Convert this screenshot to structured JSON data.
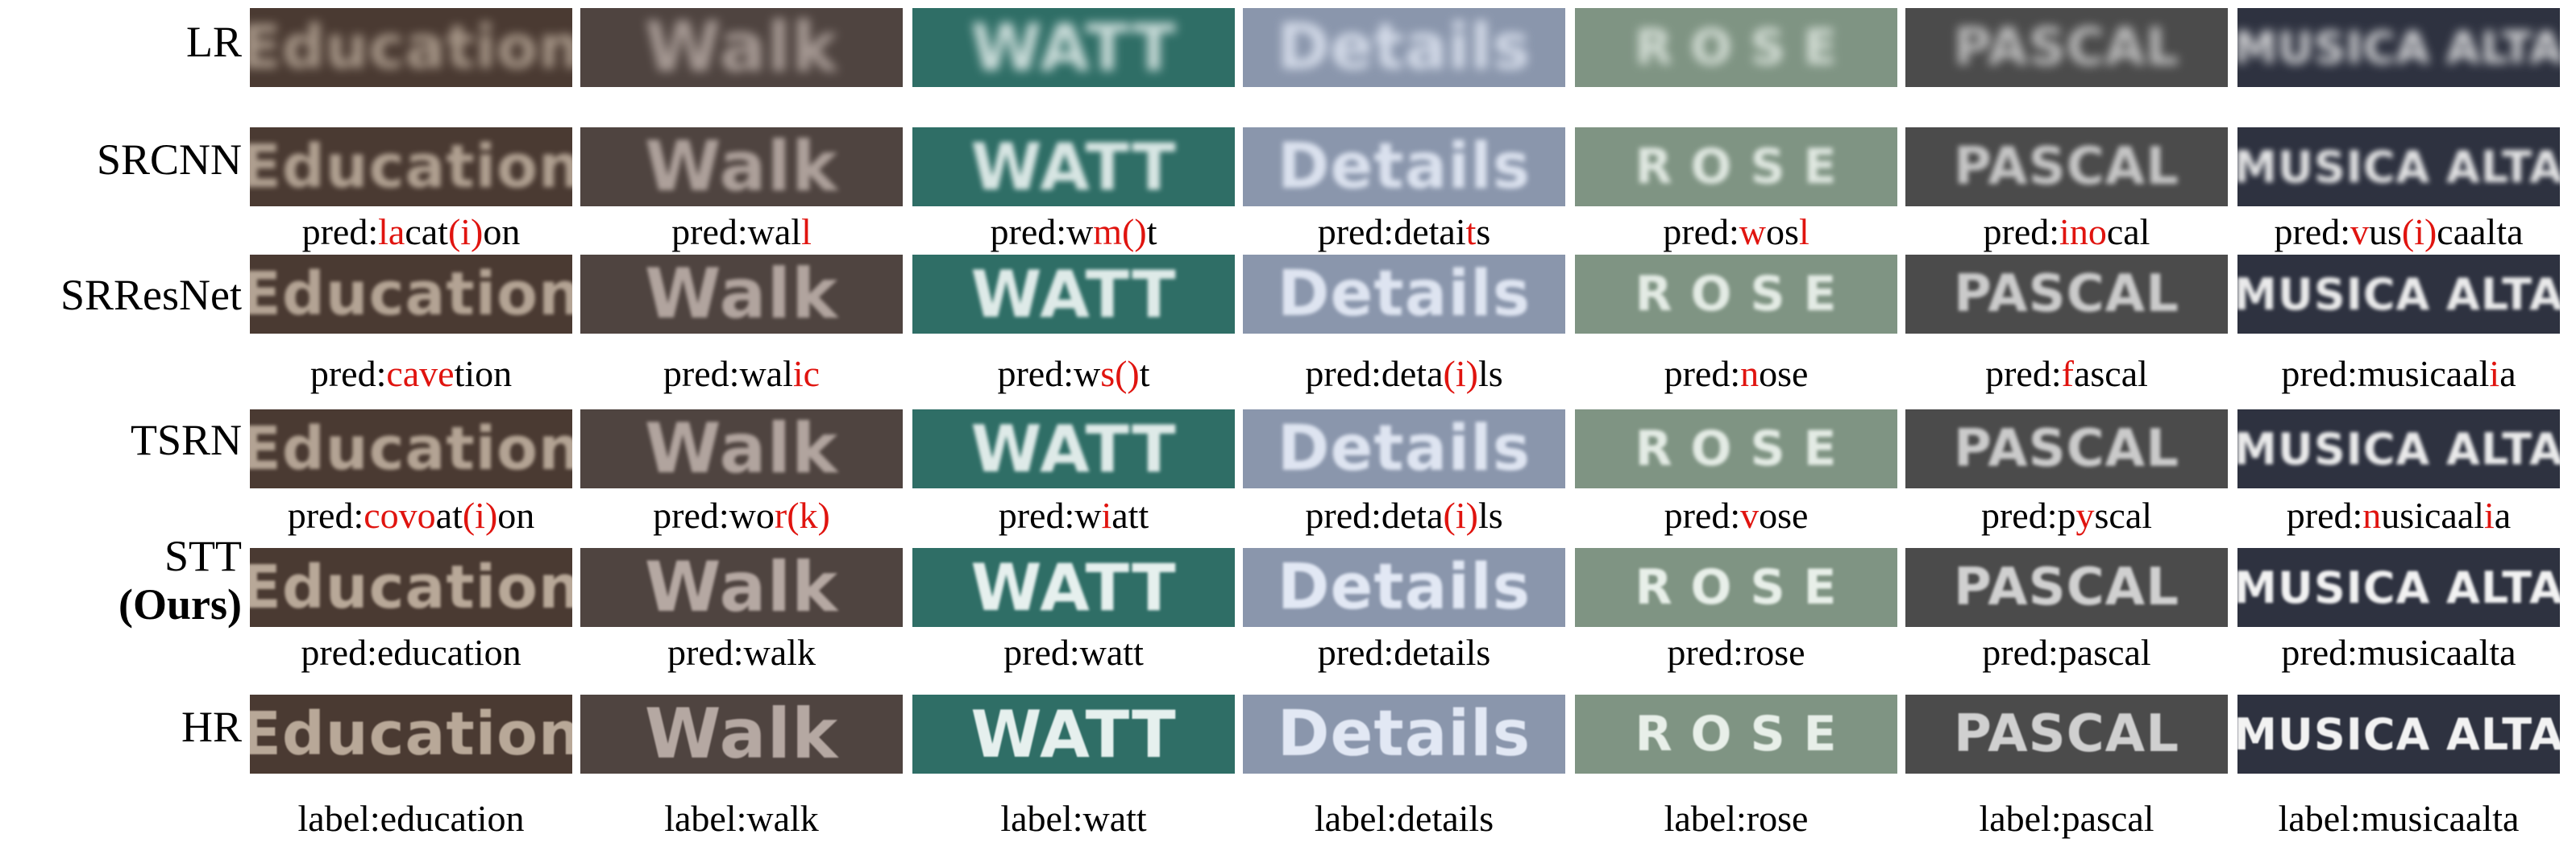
{
  "rows": [
    {
      "label": "LR",
      "sublabel": "",
      "tile_style": "lr"
    },
    {
      "label": "SRCNN",
      "sublabel": "",
      "tile_style": "sr1"
    },
    {
      "label": "SRResNet",
      "sublabel": "",
      "tile_style": "sr2"
    },
    {
      "label": "TSRN",
      "sublabel": "",
      "tile_style": "sr2"
    },
    {
      "label": "STT",
      "sublabel": "(Ours)",
      "tile_style": "ours"
    },
    {
      "label": "HR",
      "sublabel": "",
      "tile_style": "hr"
    }
  ],
  "samples": [
    {
      "text": "Education",
      "bg": "#4a3a32",
      "fg": "#b8a898",
      "font_px": 74
    },
    {
      "text": "Walk",
      "bg": "#4f4440",
      "fg": "#b5a8a2",
      "font_px": 86
    },
    {
      "text": "WATT",
      "bg": "#2f6e66",
      "fg": "#e6f0ee",
      "font_px": 80
    },
    {
      "text": "Details",
      "bg": "#8a96ac",
      "fg": "#e2e8f4",
      "font_px": 78
    },
    {
      "text": "R O S E",
      "bg": "#7f9483",
      "fg": "#e8efe9",
      "font_px": 60
    },
    {
      "text": "PASCAL",
      "bg": "#4b4b4b",
      "fg": "#d0d0d0",
      "font_px": 64
    },
    {
      "text": "MUSICA ALTA",
      "bg": "#2e3240",
      "fg": "#f2f2f2",
      "font_px": 54
    }
  ],
  "captions": [
    [
      [
        {
          "t": "pred:"
        },
        {
          "t": "la",
          "err": true
        },
        {
          "t": "cat"
        },
        {
          "t": "(i)",
          "err": true
        },
        {
          "t": "on"
        }
      ],
      [
        {
          "t": "pred:wal"
        },
        {
          "t": "l",
          "err": true
        }
      ],
      [
        {
          "t": "pred:w"
        },
        {
          "t": "m()",
          "err": true
        },
        {
          "t": "t"
        }
      ],
      [
        {
          "t": "pred:detai"
        },
        {
          "t": "t",
          "err": true
        },
        {
          "t": "s"
        }
      ],
      [
        {
          "t": "pred:"
        },
        {
          "t": "w",
          "err": true
        },
        {
          "t": "os"
        },
        {
          "t": "l",
          "err": true
        }
      ],
      [
        {
          "t": "pred:"
        },
        {
          "t": "ino",
          "err": true
        },
        {
          "t": "cal"
        }
      ],
      [
        {
          "t": "pred:"
        },
        {
          "t": "v",
          "err": true
        },
        {
          "t": "us"
        },
        {
          "t": "(i)",
          "err": true
        },
        {
          "t": "caalta"
        }
      ]
    ],
    [
      [
        {
          "t": "pred:"
        },
        {
          "t": "cave",
          "err": true
        },
        {
          "t": "tion"
        }
      ],
      [
        {
          "t": "pred:wal"
        },
        {
          "t": "ic",
          "err": true
        }
      ],
      [
        {
          "t": "pred:w"
        },
        {
          "t": "s()",
          "err": true
        },
        {
          "t": "t"
        }
      ],
      [
        {
          "t": "pred:deta"
        },
        {
          "t": "(i)",
          "err": true
        },
        {
          "t": "ls"
        }
      ],
      [
        {
          "t": "pred:"
        },
        {
          "t": "n",
          "err": true
        },
        {
          "t": "ose"
        }
      ],
      [
        {
          "t": "pred:"
        },
        {
          "t": "f",
          "err": true
        },
        {
          "t": "ascal"
        }
      ],
      [
        {
          "t": "pred:musicaal"
        },
        {
          "t": "i",
          "err": true
        },
        {
          "t": "a"
        }
      ]
    ],
    [
      [
        {
          "t": "pred:"
        },
        {
          "t": "covo",
          "err": true
        },
        {
          "t": "at"
        },
        {
          "t": "(i)",
          "err": true
        },
        {
          "t": "on"
        }
      ],
      [
        {
          "t": "pred:wo"
        },
        {
          "t": "r(k)",
          "err": true
        }
      ],
      [
        {
          "t": "pred:w"
        },
        {
          "t": "i",
          "err": true
        },
        {
          "t": "att"
        }
      ],
      [
        {
          "t": "pred:deta"
        },
        {
          "t": "(i)",
          "err": true
        },
        {
          "t": "ls"
        }
      ],
      [
        {
          "t": "pred:"
        },
        {
          "t": "v",
          "err": true
        },
        {
          "t": "ose"
        }
      ],
      [
        {
          "t": "pred:p"
        },
        {
          "t": "y",
          "err": true
        },
        {
          "t": "scal"
        }
      ],
      [
        {
          "t": "pred:"
        },
        {
          "t": "n",
          "err": true
        },
        {
          "t": "usicaal"
        },
        {
          "t": "i",
          "err": true
        },
        {
          "t": "a"
        }
      ]
    ],
    [
      [
        {
          "t": "pred:education"
        }
      ],
      [
        {
          "t": "pred:walk"
        }
      ],
      [
        {
          "t": "pred:watt"
        }
      ],
      [
        {
          "t": "pred:details"
        }
      ],
      [
        {
          "t": "pred:rose"
        }
      ],
      [
        {
          "t": "pred:pascal"
        }
      ],
      [
        {
          "t": "pred:musicaalta"
        }
      ]
    ],
    [
      [
        {
          "t": "label:education"
        }
      ],
      [
        {
          "t": "label:walk"
        }
      ],
      [
        {
          "t": "label:watt"
        }
      ],
      [
        {
          "t": "label:details"
        }
      ],
      [
        {
          "t": "label:rose"
        }
      ],
      [
        {
          "t": "label:pascal"
        }
      ],
      [
        {
          "t": "label:musicaalta"
        }
      ]
    ]
  ]
}
